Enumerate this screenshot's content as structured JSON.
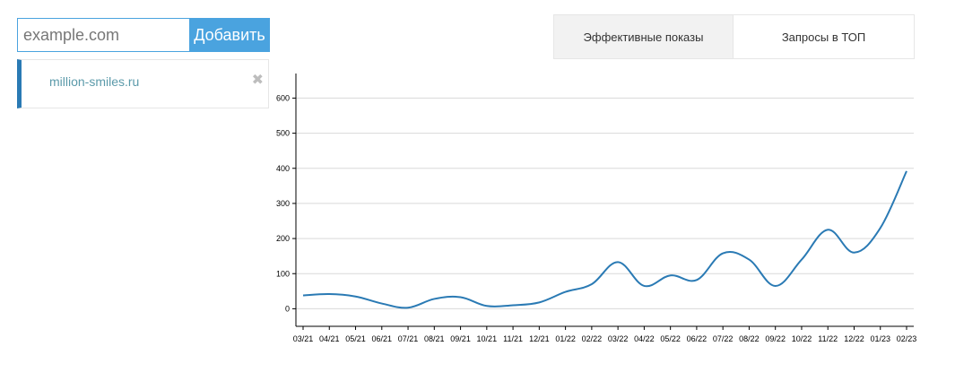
{
  "add_site": {
    "placeholder": "example.com",
    "button_label": "Добавить"
  },
  "sites": [
    {
      "domain": "million-smiles.ru",
      "remove_symbol": "✖"
    }
  ],
  "tabs": [
    {
      "label": "Эффективные показы",
      "active": true
    },
    {
      "label": "Запросы в ТОП",
      "active": false
    }
  ],
  "colors": {
    "accent": "#4aa3df",
    "line": "#2a7ab4",
    "grid": "#d9d9d9"
  },
  "chart_data": {
    "type": "line",
    "ylim": [
      -50,
      670
    ],
    "yticks": [
      0,
      100,
      200,
      300,
      400,
      500,
      600
    ],
    "grid": true,
    "x": [
      "03/21",
      "04/21",
      "05/21",
      "06/21",
      "07/21",
      "08/21",
      "09/21",
      "10/21",
      "11/21",
      "12/21",
      "01/22",
      "02/22",
      "03/22",
      "04/22",
      "05/22",
      "06/22",
      "07/22",
      "08/22",
      "09/22",
      "10/22",
      "11/22",
      "12/22",
      "01/23",
      "02/23"
    ],
    "series": [
      {
        "values": [
          38,
          42,
          35,
          15,
          3,
          28,
          33,
          8,
          10,
          18,
          48,
          70,
          133,
          65,
          95,
          82,
          158,
          140,
          65,
          140,
          225,
          160,
          230,
          392
        ]
      }
    ]
  }
}
